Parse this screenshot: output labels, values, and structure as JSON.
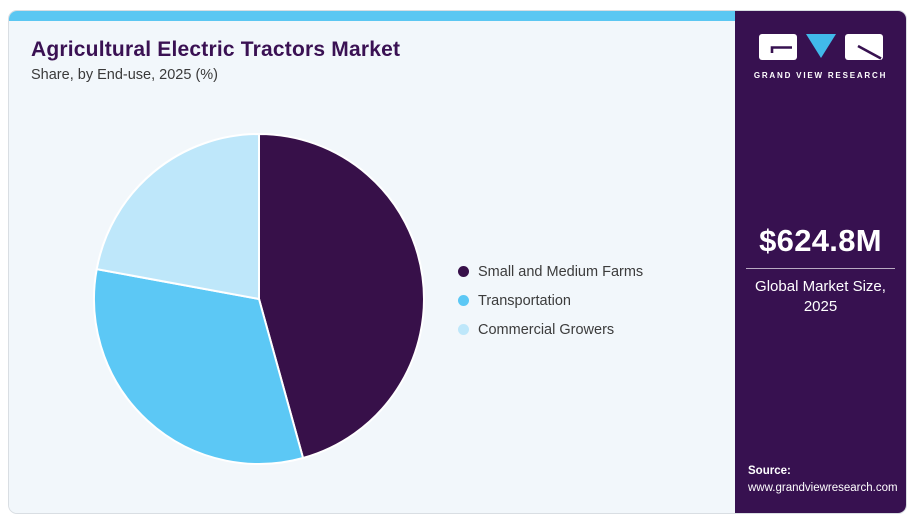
{
  "header": {
    "title": "Agricultural Electric Tractors Market",
    "subtitle": "Share, by End-use, 2025 (%)"
  },
  "chart_data": {
    "type": "pie",
    "title": "Agricultural Electric Tractors Market Share, by End-use, 2025 (%)",
    "categories": [
      "Small and Medium Farms",
      "Transportation",
      "Commercial Growers"
    ],
    "values": [
      45.7,
      32.2,
      22.1
    ],
    "unit": "%",
    "colors": [
      "#371049",
      "#5cc8f5",
      "#bee7fa"
    ],
    "start_angle_deg": 0,
    "direction": "clockwise",
    "legend_position": "right",
    "data_labels": false
  },
  "sidebar": {
    "brand": "GRAND VIEW RESEARCH",
    "stat_value": "$624.8M",
    "stat_label_line1": "Global Market Size,",
    "stat_label_line2": "2025",
    "source_label": "Source:",
    "source_url": "www.grandviewresearch.com"
  },
  "theme": {
    "accent_bar": "#5bc7f2",
    "card_bg": "#f2f7fb",
    "sidebar_bg": "#371150",
    "title_color": "#3a1153",
    "logo_triangle": "#41b9ea",
    "slice_stroke": "#ffffff"
  }
}
